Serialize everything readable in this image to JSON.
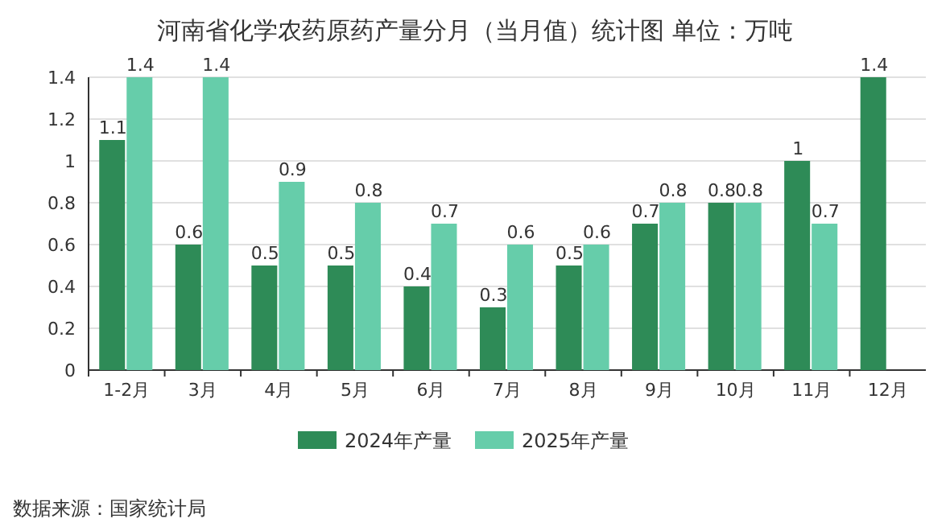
{
  "chart_data": {
    "type": "bar",
    "title": "河南省化学农药原药产量分月（当月值）统计图 单位：万吨",
    "categories": [
      "1-2月",
      "3月",
      "4月",
      "5月",
      "6月",
      "7月",
      "8月",
      "9月",
      "10月",
      "11月",
      "12月"
    ],
    "series": [
      {
        "name": "2024年产量",
        "color": "#2e8b57",
        "values": [
          1.1,
          0.6,
          0.5,
          0.5,
          0.4,
          0.3,
          0.5,
          0.7,
          0.8,
          1,
          1.4
        ]
      },
      {
        "name": "2025年产量",
        "color": "#66cdaa",
        "values": [
          1.4,
          1.4,
          0.9,
          0.8,
          0.7,
          0.6,
          0.6,
          0.8,
          0.8,
          0.7,
          null
        ]
      }
    ],
    "ylim": [
      0,
      1.4
    ],
    "yticks": [
      0,
      0.2,
      0.4,
      0.6,
      0.8,
      1,
      1.2,
      1.4
    ],
    "grid": "y",
    "legend": "bottom",
    "data_labels": true,
    "annotations": [
      "数据来源：国家统计局"
    ]
  }
}
